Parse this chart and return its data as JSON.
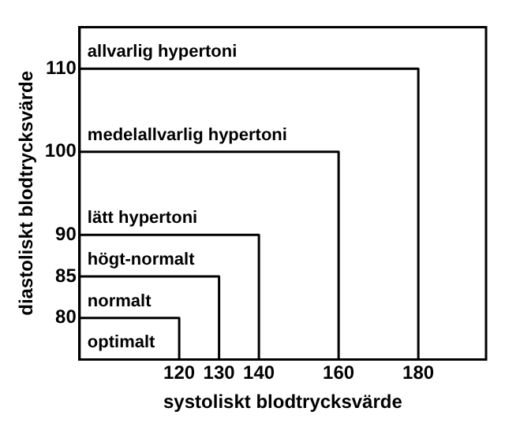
{
  "chart_data": {
    "type": "line",
    "xlabel": "systoliskt blodtrycksvärde",
    "ylabel": "diastoliskt blodtrycksvärde",
    "xlim": [
      95,
      197
    ],
    "ylim": [
      75,
      115
    ],
    "xticks": [
      120,
      130,
      140,
      160,
      180
    ],
    "yticks": [
      80,
      85,
      90,
      100,
      110
    ],
    "grid": false,
    "legend": false,
    "marker": "none",
    "line_style": "solid",
    "annotations": [
      "optimalt",
      "normalt",
      "högt-normalt",
      "lätt hypertoni",
      "medelallvarlig hypertoni",
      "allvarlig hypertoni"
    ],
    "series": [
      {
        "color": "#000000",
        "x": [
          95,
          120,
          120
        ],
        "values": [
          80,
          80,
          75
        ]
      },
      {
        "color": "#000000",
        "x": [
          95,
          130,
          130
        ],
        "values": [
          85,
          85,
          75
        ]
      },
      {
        "color": "#000000",
        "x": [
          95,
          140,
          140
        ],
        "values": [
          90,
          90,
          75
        ]
      },
      {
        "color": "#000000",
        "x": [
          95,
          160,
          160
        ],
        "values": [
          100,
          100,
          75
        ]
      },
      {
        "color": "#000000",
        "x": [
          95,
          180,
          180
        ],
        "values": [
          110,
          110,
          75
        ]
      }
    ]
  }
}
